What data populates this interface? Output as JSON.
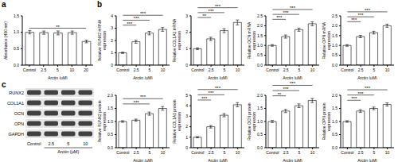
{
  "panel_labels": [
    "a",
    "b",
    "c"
  ],
  "western_blot": {
    "proteins": [
      "RUNX2",
      "COL1A1",
      "OCN",
      "OPN",
      "GAPDH"
    ],
    "lanes": [
      "Control",
      "2.5",
      "5",
      "10"
    ],
    "x_label": "Arctin (μM)"
  },
  "chart_data": [
    {
      "type": "bar",
      "y_label": "Absorbance (450 nm)",
      "x_label": "Arctin (μM)",
      "categories": [
        "Control",
        "2.5",
        "5",
        "10",
        "20"
      ],
      "values": [
        1.0,
        0.99,
        0.98,
        0.99,
        0.72
      ],
      "error": [
        0.05,
        0.05,
        0.06,
        0.05,
        0.04
      ],
      "color": "#ffffff",
      "ylim": [
        0,
        1.5
      ],
      "yticks": [
        {
          "value": 0,
          "label": "0.0"
        },
        0.5,
        {
          "value": 1,
          "label": "1.0"
        },
        1.5
      ],
      "annotations": [
        {
          "from": "Control",
          "to": "20",
          "label": "**"
        }
      ]
    },
    {
      "type": "bar",
      "y_label": "Relative RUNX2 mRNA expression",
      "x_label": "Arctin (μM)",
      "categories": [
        "Control",
        "2.5",
        "5",
        "10"
      ],
      "values": [
        1.0,
        1.9,
        2.6,
        2.9
      ],
      "error": [
        0.05,
        0.12,
        0.14,
        0.15
      ],
      "color": "#ffffff",
      "ylim": [
        0,
        4
      ],
      "yticks": [
        0,
        1,
        2,
        3,
        4
      ],
      "annotations": [
        {
          "from": "Control",
          "to": "2.5",
          "label": "***"
        },
        {
          "from": "Control",
          "to": "5",
          "label": "***"
        },
        {
          "from": "Control",
          "to": "10",
          "label": "***"
        }
      ]
    },
    {
      "type": "bar",
      "y_label": "Relative COL1A1 mRNA expression",
      "x_label": "Arctin (μM)",
      "categories": [
        "Control",
        "2.5",
        "5",
        "10"
      ],
      "values": [
        1.0,
        1.6,
        2.1,
        2.6
      ],
      "error": [
        0.05,
        0.1,
        0.12,
        0.15
      ],
      "color": "#ffffff",
      "ylim": [
        0,
        3
      ],
      "yticks": [
        0,
        1,
        2,
        3
      ],
      "annotations": [
        {
          "from": "Control",
          "to": "2.5",
          "label": "**"
        },
        {
          "from": "Control",
          "to": "5",
          "label": "***"
        },
        {
          "from": "Control",
          "to": "10",
          "label": "***"
        }
      ]
    },
    {
      "type": "bar",
      "y_label": "Relative OCN mRNA expression",
      "x_label": "Arctin (μM)",
      "categories": [
        "Control",
        "2.5",
        "5",
        "10"
      ],
      "values": [
        1.0,
        1.45,
        1.8,
        2.1
      ],
      "error": [
        0.04,
        0.08,
        0.08,
        0.1
      ],
      "color": "#ffffff",
      "ylim": [
        0,
        2.5
      ],
      "yticks": [
        {
          "value": 0,
          "label": "0.0"
        },
        0.5,
        {
          "value": 1,
          "label": "1.0"
        },
        1.5,
        {
          "value": 2,
          "label": "2.0"
        },
        2.5
      ],
      "annotations": [
        {
          "from": "Control",
          "to": "2.5",
          "label": "***"
        },
        {
          "from": "Control",
          "to": "5",
          "label": "***"
        },
        {
          "from": "Control",
          "to": "10",
          "label": "***"
        }
      ]
    },
    {
      "type": "bar",
      "y_label": "Relative OPN mRNA expression",
      "x_label": "Arctin (μM)",
      "categories": [
        "Control",
        "2.5",
        "5",
        "10"
      ],
      "values": [
        1.0,
        1.45,
        1.65,
        2.0
      ],
      "error": [
        0.04,
        0.06,
        0.07,
        0.08
      ],
      "color": "#ffffff",
      "ylim": [
        0,
        2.5
      ],
      "yticks": [
        {
          "value": 0,
          "label": "0.0"
        },
        0.5,
        {
          "value": 1,
          "label": "1.0"
        },
        1.5,
        {
          "value": 2,
          "label": "2.0"
        },
        2.5
      ],
      "annotations": [
        {
          "from": "Control",
          "to": "2.5",
          "label": "***"
        },
        {
          "from": "Control",
          "to": "5",
          "label": "***"
        },
        {
          "from": "Control",
          "to": "10",
          "label": "***"
        }
      ]
    },
    {
      "type": "bar",
      "y_label": "Relative RUNX2 protein expression",
      "x_label": "Arctin (μM)",
      "categories": [
        "Control",
        "2.5",
        "5",
        "10"
      ],
      "values": [
        1.0,
        1.05,
        1.3,
        1.5
      ],
      "error": [
        0.03,
        0.04,
        0.06,
        0.07
      ],
      "color": "#ffffff",
      "ylim": [
        0,
        2
      ],
      "yticks": [
        {
          "value": 0,
          "label": "0.0"
        },
        0.5,
        {
          "value": 1,
          "label": "1.0"
        },
        1.5,
        {
          "value": 2,
          "label": "2.0"
        }
      ],
      "annotations": [
        {
          "from": "Control",
          "to": "5",
          "label": "***"
        },
        {
          "from": "Control",
          "to": "10",
          "label": "***"
        }
      ]
    },
    {
      "type": "bar",
      "y_label": "Relative COL1A1 protein expression",
      "x_label": "Arctin (μM)",
      "categories": [
        "Control",
        "2.5",
        "5",
        "10"
      ],
      "values": [
        1.0,
        2.0,
        3.1,
        4.1
      ],
      "error": [
        0.05,
        0.12,
        0.15,
        0.2
      ],
      "color": "#ffffff",
      "ylim": [
        0,
        5
      ],
      "yticks": [
        0,
        1,
        2,
        3,
        4,
        5
      ],
      "annotations": [
        {
          "from": "Control",
          "to": "2.5",
          "label": "***"
        },
        {
          "from": "Control",
          "to": "5",
          "label": "***"
        },
        {
          "from": "Control",
          "to": "10",
          "label": "***"
        }
      ]
    },
    {
      "type": "bar",
      "y_label": "Relative OCN protein expression",
      "x_label": "Arctin (μM)",
      "categories": [
        "Control",
        "2.5",
        "5",
        "10"
      ],
      "values": [
        1.0,
        1.4,
        1.6,
        1.8
      ],
      "error": [
        0.04,
        0.06,
        0.07,
        0.08
      ],
      "color": "#ffffff",
      "ylim": [
        0,
        2
      ],
      "yticks": [
        {
          "value": 0,
          "label": "0.0"
        },
        0.5,
        {
          "value": 1,
          "label": "1.0"
        },
        1.5,
        {
          "value": 2,
          "label": "2.0"
        }
      ],
      "annotations": [
        {
          "from": "Control",
          "to": "2.5",
          "label": "**"
        },
        {
          "from": "Control",
          "to": "5",
          "label": "***"
        },
        {
          "from": "Control",
          "to": "10",
          "label": "***"
        }
      ]
    },
    {
      "type": "bar",
      "y_label": "Relative OPN protein expression",
      "x_label": "Arctin (μM)",
      "categories": [
        "Control",
        "2.5",
        "5",
        "10"
      ],
      "values": [
        1.0,
        1.4,
        1.5,
        1.65
      ],
      "error": [
        0.03,
        0.05,
        0.05,
        0.06
      ],
      "color": "#ffffff",
      "ylim": [
        0,
        2
      ],
      "yticks": [
        {
          "value": 0,
          "label": "0.0"
        },
        0.5,
        {
          "value": 1,
          "label": "1.0"
        },
        1.5,
        {
          "value": 2,
          "label": "2.0"
        }
      ],
      "annotations": [
        {
          "from": "Control",
          "to": "2.5",
          "label": "***"
        },
        {
          "from": "Control",
          "to": "5",
          "label": "***"
        },
        {
          "from": "Control",
          "to": "10",
          "label": "***"
        }
      ]
    }
  ]
}
